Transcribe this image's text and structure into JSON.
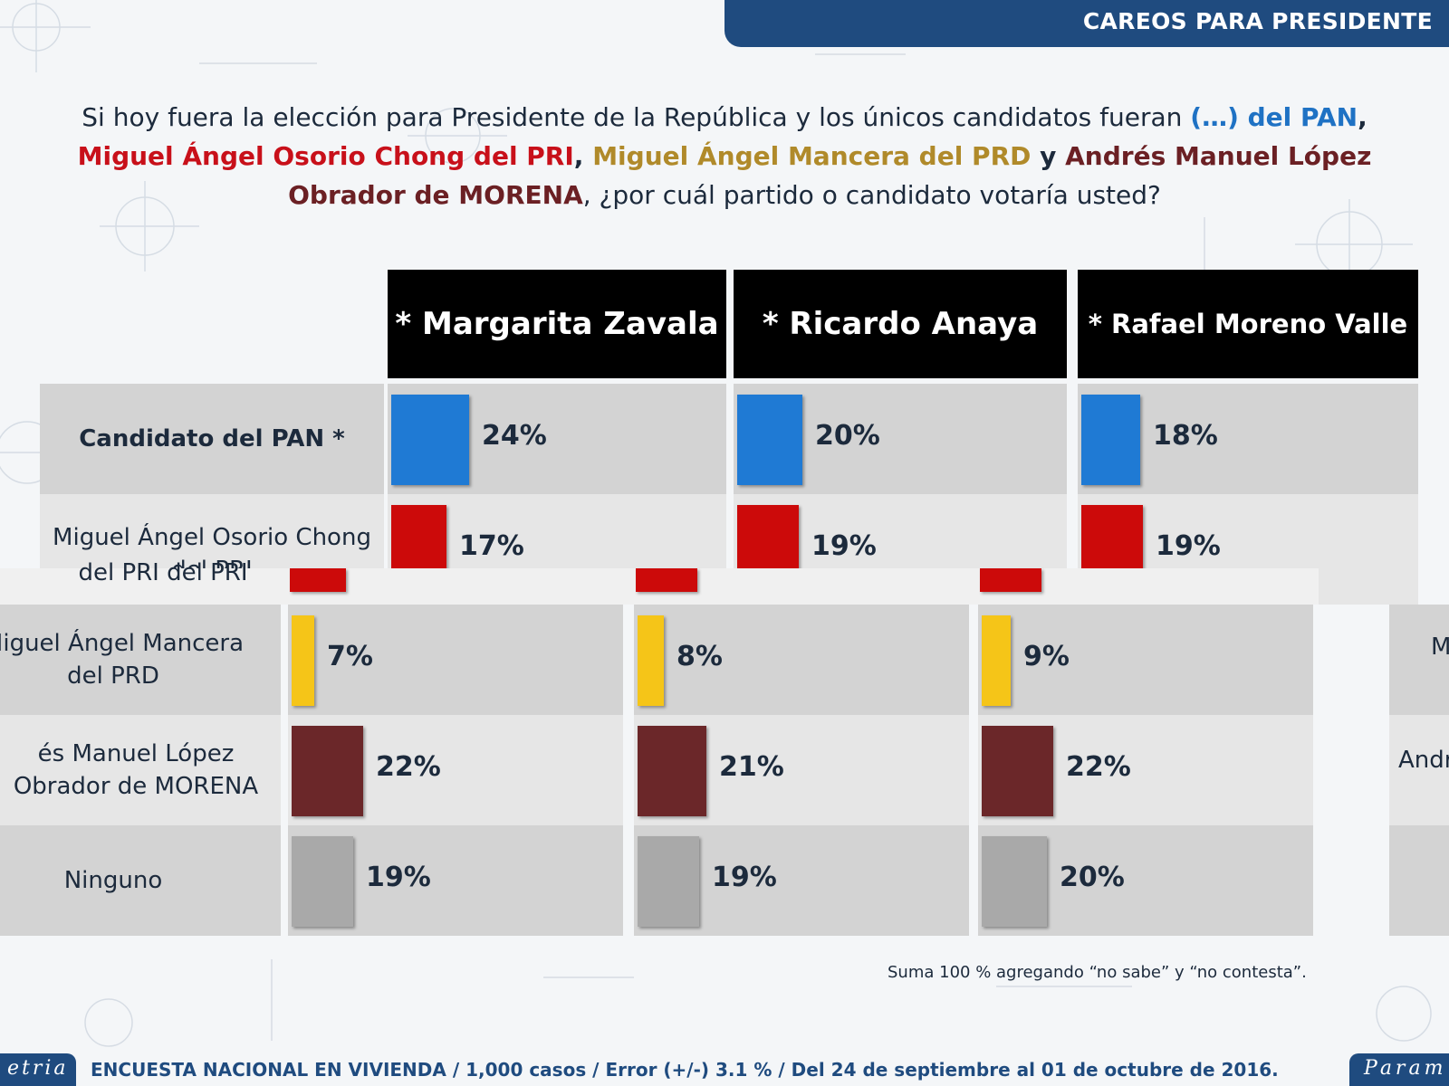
{
  "header": {
    "title": "CAREOS PARA PRESIDENTE"
  },
  "question": {
    "part1": "Si hoy fuera la elección para Presidente de la República y los únicos candidatos fueran ",
    "pan": "(…) del PAN",
    "comma1": ",",
    "pri": "Miguel Ángel Osorio Chong del PRI",
    "comma2": ", ",
    "prd": "Miguel Ángel Mancera del PRD",
    "y": " y ",
    "morena": "Andrés Manuel López Obrador de MORENA",
    "part2": ", ¿por cuál partido o candidato votaría usted?"
  },
  "columns": [
    "* Margarita Zavala",
    "* Ricardo Anaya",
    "* Rafael Moreno Valle"
  ],
  "rows": [
    {
      "label": "Candidato del PAN *"
    },
    {
      "label": "Miguel Ángel Osorio Chong del PRI",
      "overlap": "del PRI    del PRI"
    },
    {
      "label": "Miguel Ángel Mancera del PRD"
    },
    {
      "label": "Andrés Manuel López Obrador de MORENA",
      "shown": "és Manuel López Obrador de MORENA"
    },
    {
      "label": "Ninguno"
    }
  ],
  "edge": {
    "right_row3": "M",
    "right_row4": "Andr"
  },
  "chart_data": {
    "type": "bar",
    "title": "CAREOS PARA PRESIDENTE",
    "categories": [
      "Candidato del PAN *",
      "Miguel Ángel Osorio Chong del PRI",
      "Miguel Ángel Mancera del PRD",
      "Andrés Manuel López Obrador de MORENA",
      "Ninguno"
    ],
    "series": [
      {
        "name": "* Margarita Zavala",
        "values": [
          24,
          17,
          7,
          22,
          19
        ]
      },
      {
        "name": "* Ricardo Anaya",
        "values": [
          20,
          19,
          8,
          21,
          19
        ]
      },
      {
        "name": "* Rafael Moreno Valle",
        "values": [
          18,
          19,
          9,
          22,
          20
        ]
      }
    ],
    "unit": "%",
    "colors": [
      "#1f7ad4",
      "#cc0a0a",
      "#f5c518",
      "#6b2729",
      "#a9a9a9"
    ]
  },
  "note": "Suma 100 %  agregando “no sabe” y “no contesta”.",
  "footer": {
    "text": "ENCUESTA NACIONAL EN VIVIENDA / 1,000 casos / Error (+/-) 3.1 % / Del 24 de septiembre al 01 de octubre de 2016.",
    "logo_left": "etria",
    "logo_right": "Param"
  }
}
